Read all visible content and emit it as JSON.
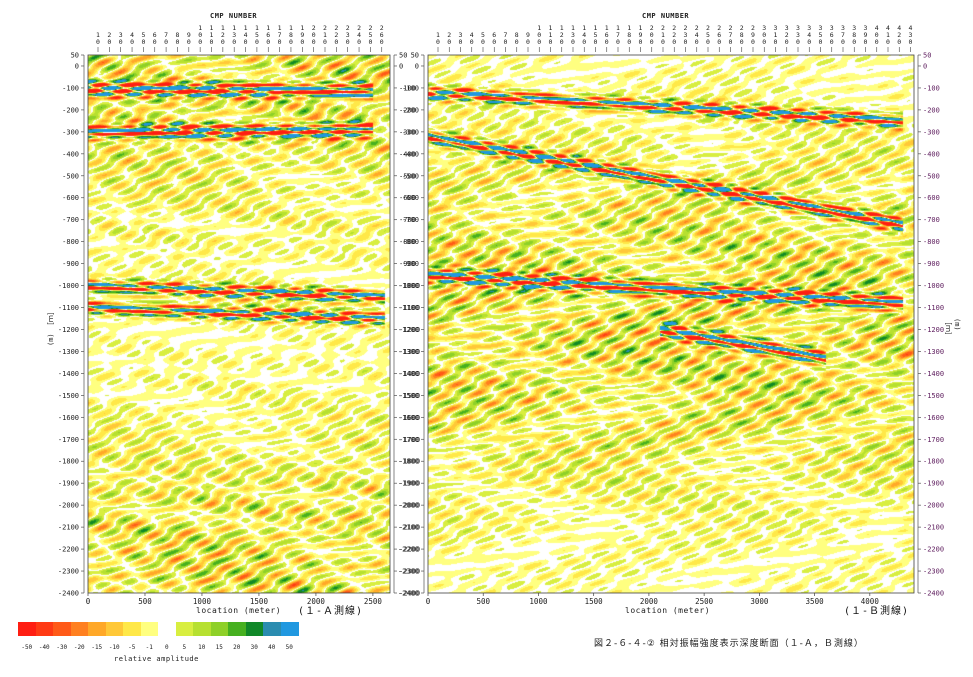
{
  "chart_data": [
    {
      "type": "heatmap",
      "title": "CMP NUMBER",
      "cmp_labels": [
        "10",
        "20",
        "30",
        "40",
        "50",
        "60",
        "70",
        "80",
        "90",
        "100",
        "110",
        "120",
        "130",
        "140",
        "150",
        "160",
        "170",
        "180",
        "190",
        "200",
        "210",
        "220",
        "230",
        "240",
        "250",
        "260"
      ],
      "xlabel": "location (meter)",
      "xticks": [
        "0",
        "500",
        "1000",
        "1500",
        "2000",
        "2500"
      ],
      "xlim": [
        0,
        2650
      ],
      "ylabel": "(m) ［ｍ］",
      "yticks": [
        "50",
        "0",
        "-100",
        "-200",
        "-300",
        "-400",
        "-500",
        "-600",
        "-700",
        "-800",
        "-900",
        "-1000",
        "-1100",
        "-1200",
        "-1300",
        "-1400",
        "-1500",
        "-1600",
        "-1700",
        "-1800",
        "-1900",
        "-2000",
        "-2100",
        "-2200",
        "-2300",
        "-2400"
      ],
      "ylim": [
        -2400,
        50
      ],
      "line_id": "(１-Ａ測線)",
      "reflectors": [
        {
          "x": [
            0,
            2500
          ],
          "depth": [
            -105,
            -110
          ]
        },
        {
          "x": [
            0,
            2500
          ],
          "depth": [
            -300,
            -290
          ]
        },
        {
          "x": [
            0,
            2600
          ],
          "depth": [
            -1000,
            -1050
          ]
        },
        {
          "x": [
            0,
            2600
          ],
          "depth": [
            -1100,
            -1150
          ]
        }
      ]
    },
    {
      "type": "heatmap",
      "title": "CMP NUMBER",
      "cmp_labels": [
        "10",
        "20",
        "30",
        "40",
        "50",
        "60",
        "70",
        "80",
        "90",
        "100",
        "110",
        "120",
        "130",
        "140",
        "150",
        "160",
        "170",
        "180",
        "190",
        "200",
        "210",
        "220",
        "230",
        "240",
        "250",
        "260",
        "270",
        "280",
        "290",
        "300",
        "310",
        "320",
        "330",
        "340",
        "350",
        "360",
        "370",
        "380",
        "390",
        "400",
        "410",
        "420",
        "430"
      ],
      "xlabel": "location (meter)",
      "xticks": [
        "0",
        "500",
        "1000",
        "1500",
        "2000",
        "2500",
        "3000",
        "3500",
        "4000"
      ],
      "xlim": [
        0,
        4400
      ],
      "ylabel": "(m) ［ｍ］",
      "yticks": [
        "50",
        "0",
        "-100",
        "-200",
        "-300",
        "-400",
        "-500",
        "-600",
        "-700",
        "-800",
        "-900",
        "-1000",
        "-1100",
        "-1200",
        "-1300",
        "-1400",
        "-1500",
        "-1600",
        "-1700",
        "-1800",
        "-1900",
        "-2000",
        "-2100",
        "-2200",
        "-2300",
        "-2400"
      ],
      "ylim": [
        -2400,
        50
      ],
      "line_id": "(１-Ｂ測線)",
      "reflectors": [
        {
          "x": [
            0,
            4300
          ],
          "depth": [
            -120,
            -250
          ]
        },
        {
          "x": [
            0,
            4300
          ],
          "depth": [
            -320,
            -720
          ]
        },
        {
          "x": [
            0,
            4300
          ],
          "depth": [
            -950,
            -1080
          ]
        },
        {
          "x": [
            2100,
            3600
          ],
          "depth": [
            -1200,
            -1330
          ]
        }
      ]
    }
  ],
  "colorbar": {
    "label": "relative amplitude",
    "ticks": [
      "-50",
      "-40",
      "-30",
      "-20",
      "-15",
      "-10",
      "-5",
      "-1",
      "0",
      "5",
      "10",
      "15",
      "20",
      "30",
      "40",
      "50"
    ],
    "colors": [
      "#ff1e12",
      "#ff3a14",
      "#ff5a18",
      "#ff8020",
      "#ffa828",
      "#ffc838",
      "#ffe848",
      "#ffff80",
      "#ffffff",
      "#d8ee40",
      "#b6e030",
      "#8ed028",
      "#46b020",
      "#108828",
      "#2a8cb0",
      "#2098e0"
    ]
  },
  "caption": "図２-６-４-② 相対振幅強度表示深度断面（１-Ａ，Ｂ測線）"
}
